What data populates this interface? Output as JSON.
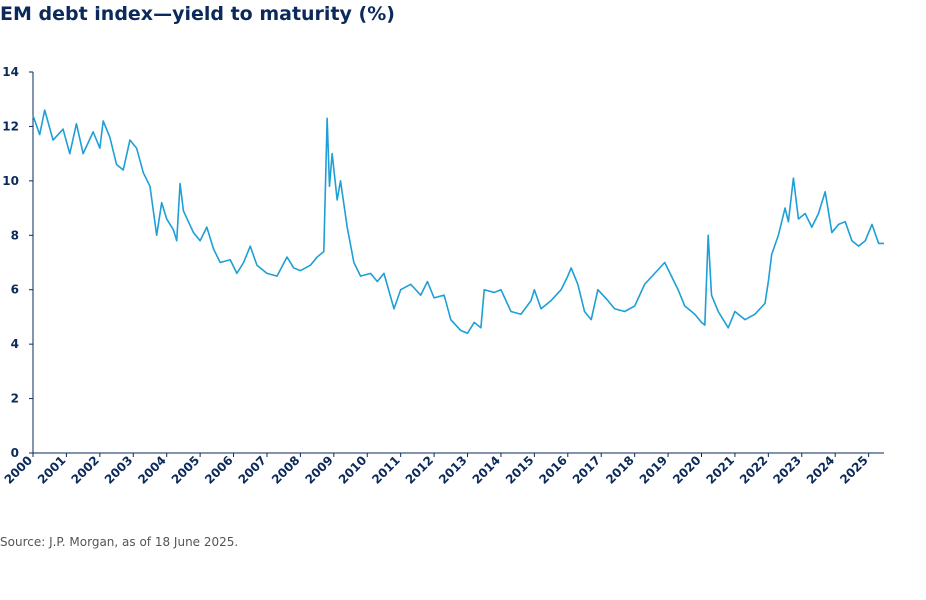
{
  "chart_data": {
    "type": "line",
    "title": "EM debt index—yield to maturity (%)",
    "source": "Source: J.P. Morgan, as of 18 June 2025.",
    "xlim": [
      2000,
      2025.46
    ],
    "xticks": [
      2000,
      2001,
      2002,
      2003,
      2004,
      2005,
      2006,
      2007,
      2008,
      2009,
      2010,
      2011,
      2012,
      2013,
      2014,
      2015,
      2016,
      2017,
      2018,
      2019,
      2020,
      2021,
      2022,
      2023,
      2024,
      2025
    ],
    "ylim": [
      0,
      14
    ],
    "yticks": [
      0,
      2,
      4,
      6,
      8,
      10,
      12,
      14
    ],
    "grid": false,
    "color": "#1e9fd6",
    "x": [
      2000.0,
      2000.2,
      2000.35,
      2000.6,
      2000.9,
      2001.1,
      2001.3,
      2001.5,
      2001.8,
      2002.0,
      2002.1,
      2002.3,
      2002.5,
      2002.7,
      2002.9,
      2003.1,
      2003.3,
      2003.5,
      2003.7,
      2003.85,
      2004.0,
      2004.2,
      2004.3,
      2004.4,
      2004.5,
      2004.8,
      2005.0,
      2005.2,
      2005.4,
      2005.6,
      2005.9,
      2006.1,
      2006.3,
      2006.5,
      2006.7,
      2007.0,
      2007.3,
      2007.6,
      2007.8,
      2008.0,
      2008.3,
      2008.5,
      2008.7,
      2008.8,
      2008.87,
      2008.95,
      2009.1,
      2009.2,
      2009.4,
      2009.6,
      2009.8,
      2010.1,
      2010.3,
      2010.5,
      2010.8,
      2011.0,
      2011.3,
      2011.6,
      2011.8,
      2012.0,
      2012.3,
      2012.5,
      2012.8,
      2013.0,
      2013.2,
      2013.4,
      2013.5,
      2013.8,
      2014.0,
      2014.3,
      2014.6,
      2014.9,
      2015.0,
      2015.2,
      2015.5,
      2015.8,
      2016.0,
      2016.1,
      2016.3,
      2016.5,
      2016.7,
      2016.9,
      2017.2,
      2017.4,
      2017.7,
      2018.0,
      2018.3,
      2018.6,
      2018.9,
      2019.1,
      2019.3,
      2019.5,
      2019.8,
      2020.0,
      2020.1,
      2020.2,
      2020.3,
      2020.5,
      2020.8,
      2021.0,
      2021.3,
      2021.6,
      2021.9,
      2022.0,
      2022.1,
      2022.3,
      2022.5,
      2022.6,
      2022.75,
      2022.9,
      2023.1,
      2023.3,
      2023.5,
      2023.7,
      2023.9,
      2024.1,
      2024.3,
      2024.5,
      2024.7,
      2024.9,
      2025.1,
      2025.3,
      2025.46
    ],
    "values": [
      12.4,
      11.7,
      12.6,
      11.5,
      11.9,
      11.0,
      12.1,
      11.0,
      11.8,
      11.2,
      12.2,
      11.6,
      10.6,
      10.4,
      11.5,
      11.2,
      10.3,
      9.8,
      8.0,
      9.2,
      8.6,
      8.2,
      7.8,
      9.9,
      8.9,
      8.1,
      7.8,
      8.3,
      7.5,
      7.0,
      7.1,
      6.6,
      7.0,
      7.6,
      6.9,
      6.6,
      6.5,
      7.2,
      6.8,
      6.7,
      6.9,
      7.2,
      7.4,
      12.3,
      9.8,
      11.0,
      9.3,
      10.0,
      8.3,
      7.0,
      6.5,
      6.6,
      6.3,
      6.6,
      5.3,
      6.0,
      6.2,
      5.8,
      6.3,
      5.7,
      5.8,
      4.9,
      4.5,
      4.4,
      4.8,
      4.6,
      6.0,
      5.9,
      6.0,
      5.2,
      5.1,
      5.6,
      6.0,
      5.3,
      5.6,
      6.0,
      6.5,
      6.8,
      6.2,
      5.2,
      4.9,
      6.0,
      5.6,
      5.3,
      5.2,
      5.4,
      6.2,
      6.6,
      7.0,
      6.5,
      6.0,
      5.4,
      5.1,
      4.8,
      4.7,
      8.0,
      5.8,
      5.2,
      4.6,
      5.2,
      4.9,
      5.1,
      5.5,
      6.3,
      7.3,
      8.0,
      9.0,
      8.5,
      10.1,
      8.6,
      8.8,
      8.3,
      8.8,
      9.6,
      8.1,
      8.4,
      8.5,
      7.8,
      7.6,
      7.8,
      8.4,
      7.7,
      7.7
    ]
  }
}
